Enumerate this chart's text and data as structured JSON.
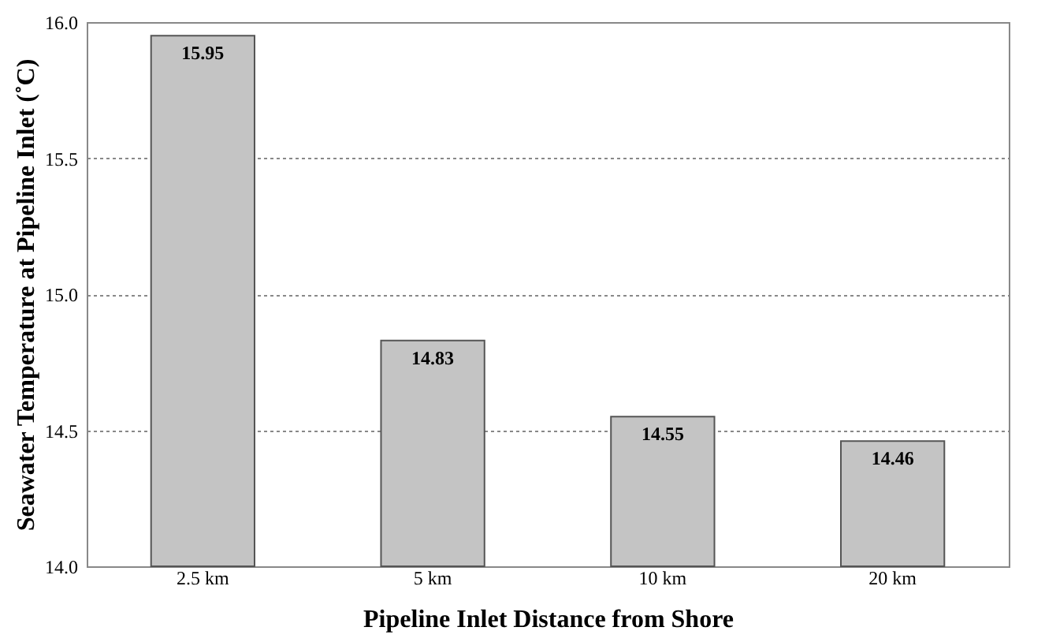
{
  "chart_data": {
    "type": "bar",
    "xlabel": "Pipeline Inlet Distance from Shore",
    "ylabel": "Seawater Temperature at Pipeline Inlet (˚C)",
    "categories": [
      "2.5 km",
      "5 km",
      "10 km",
      "20 km"
    ],
    "values": [
      15.95,
      14.83,
      14.55,
      14.46
    ],
    "color": "#c4c4c4",
    "ylim": [
      14.0,
      16.0
    ],
    "yticks": [
      {
        "value": 14.0,
        "label": "14.0"
      },
      {
        "value": 14.5,
        "label": "14.5"
      },
      {
        "value": 15.0,
        "label": "15.0"
      },
      {
        "value": 15.5,
        "label": "15.5"
      },
      {
        "value": 16.0,
        "label": "16.0"
      }
    ],
    "grid": "y",
    "data_labels": true
  }
}
